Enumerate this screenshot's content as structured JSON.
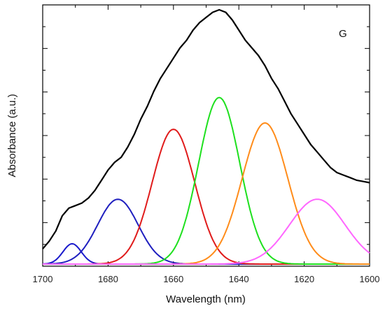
{
  "chart_data": {
    "type": "line",
    "panel_label": "G",
    "xlabel": "Wavelength (nm)",
    "ylabel": "Absorbance (a.u.)",
    "xlim": [
      1700,
      1600
    ],
    "x_reversed": true,
    "ylim": [
      0,
      1
    ],
    "x_ticks": [
      1700,
      1680,
      1660,
      1640,
      1620,
      1600
    ],
    "y_tick_labels_shown": false,
    "grid": false,
    "legend": "none",
    "series": [
      {
        "color": "#000000",
        "role": "envelope",
        "x": [
          1700,
          1698,
          1696,
          1694,
          1692,
          1690,
          1688,
          1686,
          1684,
          1682,
          1680,
          1678,
          1676,
          1674,
          1672,
          1670,
          1668,
          1666,
          1664,
          1662,
          1660,
          1658,
          1656,
          1654,
          1652,
          1650,
          1648,
          1646,
          1644,
          1642,
          1640,
          1638,
          1636,
          1634,
          1632,
          1630,
          1628,
          1626,
          1624,
          1622,
          1620,
          1618,
          1616,
          1614,
          1612,
          1610,
          1608,
          1606,
          1604,
          1602,
          1600
        ],
        "values": [
          0.06,
          0.09,
          0.13,
          0.19,
          0.22,
          0.23,
          0.24,
          0.26,
          0.29,
          0.33,
          0.37,
          0.4,
          0.42,
          0.46,
          0.51,
          0.57,
          0.62,
          0.68,
          0.73,
          0.77,
          0.81,
          0.85,
          0.88,
          0.92,
          0.95,
          0.97,
          0.99,
          1.0,
          0.99,
          0.96,
          0.92,
          0.88,
          0.85,
          0.82,
          0.78,
          0.73,
          0.69,
          0.64,
          0.59,
          0.55,
          0.51,
          0.47,
          0.44,
          0.41,
          0.38,
          0.36,
          0.35,
          0.34,
          0.33,
          0.325,
          0.32
        ]
      },
      {
        "color": "#1a1acc",
        "role": "fitted-band",
        "center": 1691,
        "height": 0.08,
        "sigma": 2.8
      },
      {
        "color": "#1f1fbf",
        "role": "fitted-band",
        "center": 1677,
        "height": 0.255,
        "sigma": 6.2
      },
      {
        "color": "#e01b1b",
        "role": "fitted-band",
        "center": 1660,
        "height": 0.53,
        "sigma": 6.5
      },
      {
        "color": "#1ee01e",
        "role": "fitted-band",
        "center": 1646,
        "height": 0.655,
        "sigma": 6.3
      },
      {
        "color": "#ff8c1a",
        "role": "fitted-band",
        "center": 1632,
        "height": 0.555,
        "sigma": 7.0
      },
      {
        "color": "#ff66ff",
        "role": "fitted-band",
        "center": 1616,
        "height": 0.255,
        "sigma": 8.5
      }
    ]
  }
}
